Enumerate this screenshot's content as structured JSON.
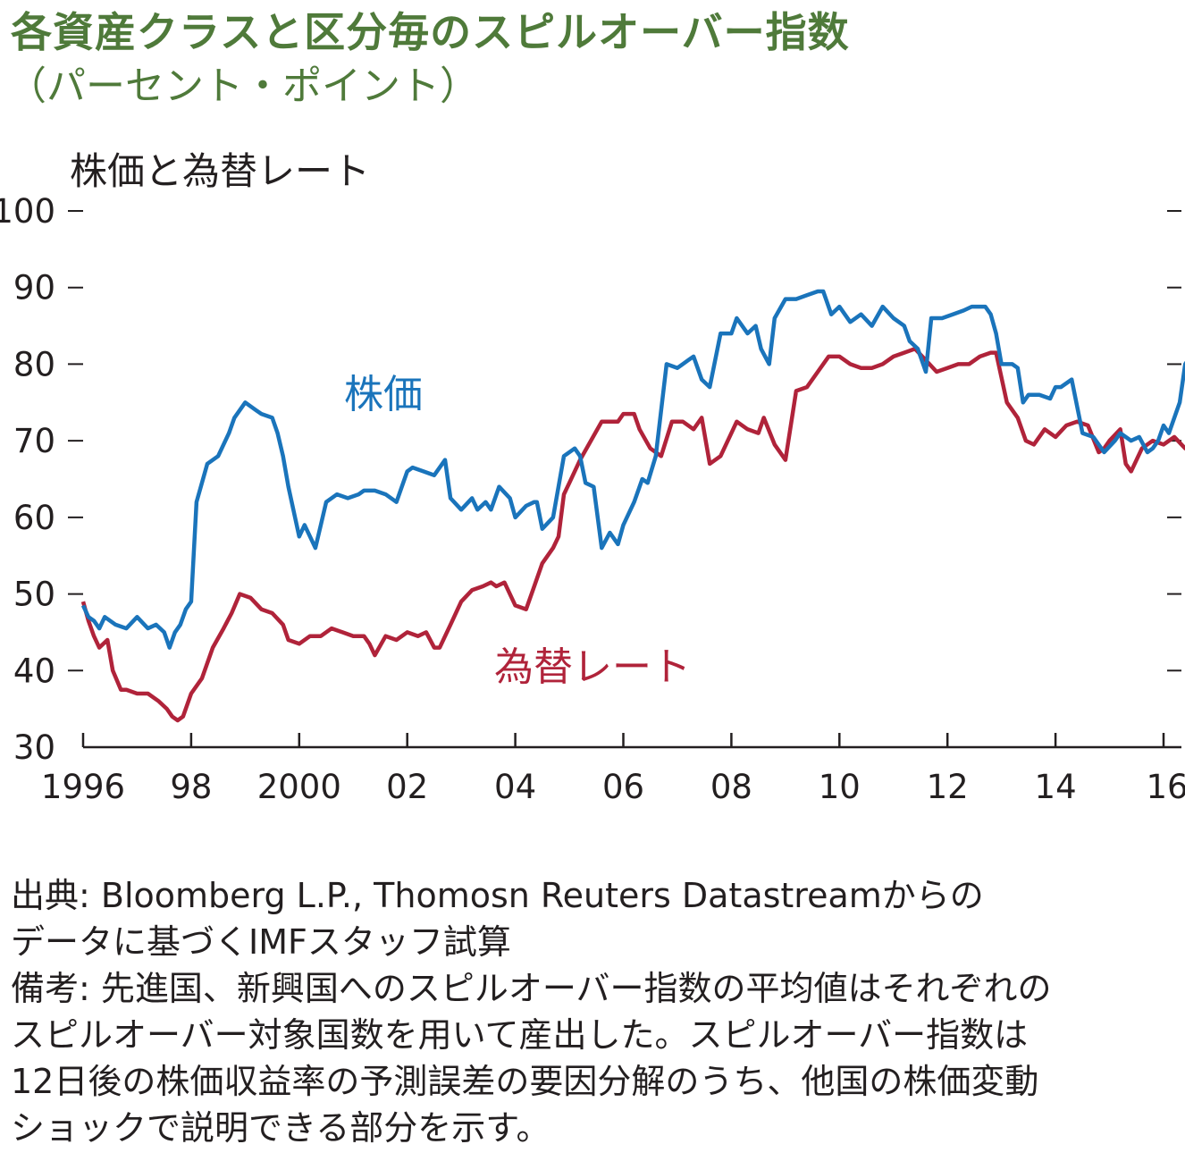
{
  "title": "各資産クラスと区分毎のスピルオーバー指数",
  "subtitle": "（パーセント・ポイント）",
  "panel_title": "株価と為替レート",
  "notes": [
    "出典: Bloomberg L.P., Thomosn Reuters Datastreamからの",
    "データに基づくIMFスタッフ試算",
    "備考: 先進国、新興国へのスピルオーバー指数の平均値はそれぞれの",
    "スピルオーバー対象国数を用いて産出した。スピルオーバー指数は",
    "12日後の株価収益率の予測誤差の要因分解のうち、他国の株価変動",
    "ショックで説明できる部分を示す。"
  ],
  "colors": {
    "title": "#4f7a3a",
    "equity": "#1a74bb",
    "fx": "#b0233a",
    "axis": "#231f20"
  },
  "chart_data": {
    "type": "line",
    "xlabel": "",
    "ylabel": "",
    "ylim": [
      30,
      100
    ],
    "xlim": [
      1996.0,
      2016.0
    ],
    "yticks": [
      30,
      40,
      50,
      60,
      70,
      80,
      90,
      100
    ],
    "xticks": [
      1996,
      1998,
      2000,
      2002,
      2004,
      2006,
      2008,
      2010,
      2012,
      2014,
      2016
    ],
    "xtick_labels": [
      "1996",
      "98",
      "2000",
      "02",
      "04",
      "06",
      "08",
      "10",
      "12",
      "14",
      "16"
    ],
    "grid": false,
    "series": [
      {
        "name": "株価",
        "color": "#1a74bb",
        "x": [
          1996.0,
          1996.1,
          1996.2,
          1996.3,
          1996.4,
          1996.6,
          1996.8,
          1997.0,
          1997.2,
          1997.35,
          1997.5,
          1997.6,
          1997.7,
          1997.8,
          1997.9,
          1998.0,
          1998.1,
          1998.3,
          1998.5,
          1998.7,
          1998.8,
          1999.0,
          1999.2,
          1999.3,
          1999.5,
          1999.6,
          1999.7,
          1999.8,
          2000.0,
          2000.1,
          2000.2,
          2000.3,
          2000.4,
          2000.5,
          2000.7,
          2000.9,
          2001.1,
          2001.2,
          2001.4,
          2001.6,
          2001.8,
          2002.0,
          2002.1,
          2002.3,
          2002.5,
          2002.7,
          2002.8,
          2003.0,
          2003.2,
          2003.3,
          2003.45,
          2003.55,
          2003.7,
          2003.9,
          2004.0,
          2004.2,
          2004.35,
          2004.4,
          2004.5,
          2004.7,
          2004.9,
          2005.1,
          2005.2,
          2005.3,
          2005.45,
          2005.6,
          2005.75,
          2005.9,
          2006.0,
          2006.2,
          2006.35,
          2006.45,
          2006.6,
          2006.8,
          2007.0,
          2007.2,
          2007.3,
          2007.45,
          2007.6,
          2007.8,
          2008.0,
          2008.1,
          2008.3,
          2008.45,
          2008.55,
          2008.7,
          2008.8,
          2009.0,
          2009.2,
          2009.4,
          2009.6,
          2009.7,
          2009.85,
          2010.0,
          2010.2,
          2010.4,
          2010.6,
          2010.8,
          2011.0,
          2011.2,
          2011.3,
          2011.45,
          2011.6,
          2011.7,
          2011.9,
          2012.1,
          2012.3,
          2012.45,
          2012.6,
          2012.7,
          2012.8,
          2012.9,
          2013.0,
          2013.2,
          2013.3,
          2013.4,
          2013.5,
          2013.7,
          2013.9,
          2014.0,
          2014.1,
          2014.3,
          2014.5,
          2014.7,
          2014.9,
          2015.1,
          2015.2,
          2015.4,
          2015.55,
          2015.7,
          2015.8,
          2015.9,
          2016.0,
          2016.1,
          2016.3,
          2016.4,
          2016.5,
          2016.65
        ],
        "y": [
          48.5,
          47,
          46.5,
          45.5,
          47,
          46,
          45.5,
          47,
          45.5,
          46,
          45,
          43,
          45,
          46,
          48,
          49,
          62,
          67,
          68,
          71,
          73,
          75,
          74,
          73.5,
          73,
          71,
          68,
          64,
          57.5,
          59,
          57.5,
          56,
          59,
          62,
          63,
          62.5,
          63,
          63.5,
          63.5,
          63,
          62,
          66,
          66.5,
          66,
          65.5,
          67.5,
          62.5,
          61,
          62.5,
          61,
          62,
          61,
          64,
          62.5,
          60,
          61.5,
          62,
          62,
          58.5,
          60,
          68,
          69,
          68,
          64.5,
          64,
          56,
          58,
          56.5,
          59,
          62,
          65,
          64.5,
          68,
          80,
          79.5,
          80.5,
          81,
          78,
          77,
          84,
          84,
          86,
          84,
          85,
          82,
          80,
          86,
          88.5,
          88.5,
          89,
          89.5,
          89.5,
          86.5,
          87.5,
          85.5,
          86.5,
          85,
          87.5,
          86,
          85,
          83,
          82,
          79,
          86,
          86,
          86.5,
          87,
          87.5,
          87.5,
          87.5,
          86.5,
          84,
          80,
          80,
          79.5,
          75,
          76,
          76,
          75.5,
          77,
          77,
          78,
          71,
          70.5,
          68.5,
          70,
          71,
          70,
          70.5,
          68.5,
          69,
          70,
          72,
          71,
          75,
          80,
          81,
          81.5
        ]
      },
      {
        "name": "為替レート",
        "color": "#b0233a",
        "x": [
          1996.0,
          1996.1,
          1996.2,
          1996.3,
          1996.45,
          1996.55,
          1996.7,
          1996.8,
          1997.0,
          1997.2,
          1997.4,
          1997.55,
          1997.65,
          1997.75,
          1997.85,
          1998.0,
          1998.2,
          1998.4,
          1998.6,
          1998.75,
          1998.9,
          1999.1,
          1999.3,
          1999.5,
          1999.7,
          1999.8,
          2000.0,
          2000.2,
          2000.4,
          2000.6,
          2000.8,
          2001.0,
          2001.2,
          2001.3,
          2001.4,
          2001.6,
          2001.8,
          2002.0,
          2002.2,
          2002.35,
          2002.5,
          2002.6,
          2002.8,
          2003.0,
          2003.2,
          2003.4,
          2003.55,
          2003.65,
          2003.8,
          2004.0,
          2004.2,
          2004.35,
          2004.5,
          2004.7,
          2004.8,
          2004.9,
          2005.0,
          2005.2,
          2005.4,
          2005.6,
          2005.7,
          2005.9,
          2006.0,
          2006.2,
          2006.3,
          2006.5,
          2006.7,
          2006.9,
          2007.1,
          2007.3,
          2007.45,
          2007.6,
          2007.8,
          2008.0,
          2008.1,
          2008.3,
          2008.5,
          2008.6,
          2008.8,
          2009.0,
          2009.2,
          2009.4,
          2009.6,
          2009.8,
          2010.0,
          2010.2,
          2010.4,
          2010.6,
          2010.8,
          2011.0,
          2011.2,
          2011.4,
          2011.6,
          2011.8,
          2012.0,
          2012.2,
          2012.4,
          2012.6,
          2012.8,
          2012.9,
          2013.1,
          2013.3,
          2013.45,
          2013.6,
          2013.8,
          2014.0,
          2014.2,
          2014.4,
          2014.6,
          2014.8,
          2014.9,
          2015.0,
          2015.2,
          2015.3,
          2015.4,
          2015.6,
          2015.8,
          2016.0,
          2016.2,
          2016.4,
          2016.5,
          2016.6,
          2016.65
        ],
        "y": [
          49,
          46.5,
          44.5,
          43,
          44,
          40,
          37.5,
          37.5,
          37,
          37,
          36,
          35,
          34,
          33.5,
          34,
          37,
          39,
          43,
          45.5,
          47.5,
          50,
          49.5,
          48,
          47.5,
          46,
          44,
          43.5,
          44.5,
          44.5,
          45.5,
          45,
          44.5,
          44.5,
          43.5,
          42,
          44.5,
          44,
          45,
          44.5,
          45,
          43,
          43,
          46,
          49,
          50.5,
          51,
          51.5,
          51,
          51.5,
          48.5,
          48,
          51,
          54,
          56,
          57.5,
          63,
          64.5,
          67.5,
          70,
          72.5,
          72.5,
          72.5,
          73.5,
          73.5,
          71.5,
          69,
          68,
          72.5,
          72.5,
          71.5,
          73,
          67,
          68,
          71,
          72.5,
          71.5,
          71,
          73,
          69.5,
          67.5,
          76.5,
          77,
          79,
          81,
          81,
          80,
          79.5,
          79.5,
          80,
          81,
          81.5,
          82,
          80.5,
          79,
          79.5,
          80,
          80,
          81,
          81.5,
          81.5,
          75,
          73,
          70,
          69.5,
          71.5,
          70.5,
          72,
          72.5,
          72,
          68.5,
          69,
          70,
          71.5,
          67,
          66,
          69,
          70,
          69.5,
          70.5,
          69,
          69,
          70,
          71
        ]
      }
    ],
    "annotations": [
      "株価",
      "為替レート"
    ]
  }
}
